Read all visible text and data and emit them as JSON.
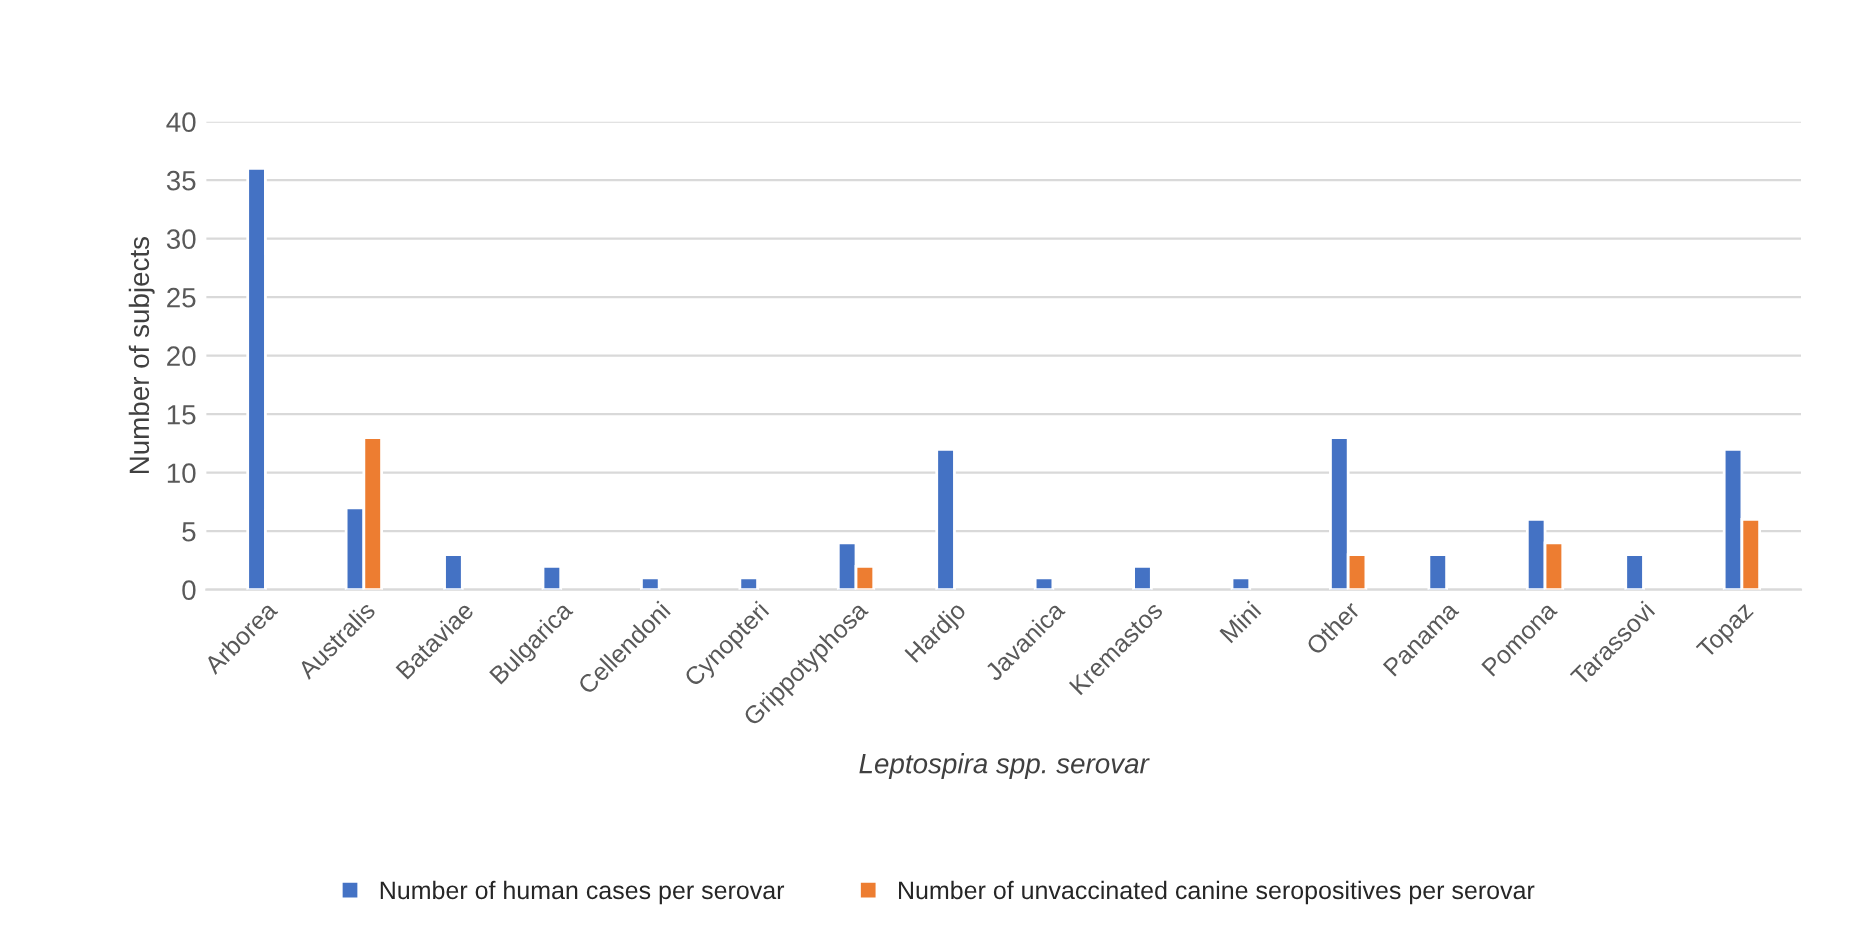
{
  "chart_data": {
    "type": "bar",
    "xlabel": "Leptospira spp. serovar",
    "ylabel": "Number of subjects",
    "categories": [
      "Arborea",
      "Australis",
      "Bataviae",
      "Bulgarica",
      "Cellendoni",
      "Cynopteri",
      "Grippotyphosa",
      "Hardjo",
      "Javanica",
      "Kremastos",
      "Mini",
      "Other",
      "Panama",
      "Pomona",
      "Tarassovi",
      "Topaz"
    ],
    "series": [
      {
        "name": "Number of human cases per serovar",
        "color": "#4472c4",
        "values": [
          36,
          7,
          3,
          2,
          1,
          1,
          4,
          12,
          1,
          2,
          1,
          13,
          3,
          6,
          3,
          12
        ]
      },
      {
        "name": "Number of unvaccinated canine seropositives per serovar",
        "color": "#ed7d31",
        "values": [
          null,
          13,
          null,
          null,
          null,
          null,
          2,
          null,
          null,
          null,
          null,
          3,
          null,
          4,
          null,
          6
        ]
      }
    ],
    "ylim": [
      0,
      40
    ],
    "yticks": [
      0,
      5,
      10,
      15,
      20,
      25,
      30,
      35,
      40
    ],
    "grid": "y",
    "legend": "bottom"
  }
}
